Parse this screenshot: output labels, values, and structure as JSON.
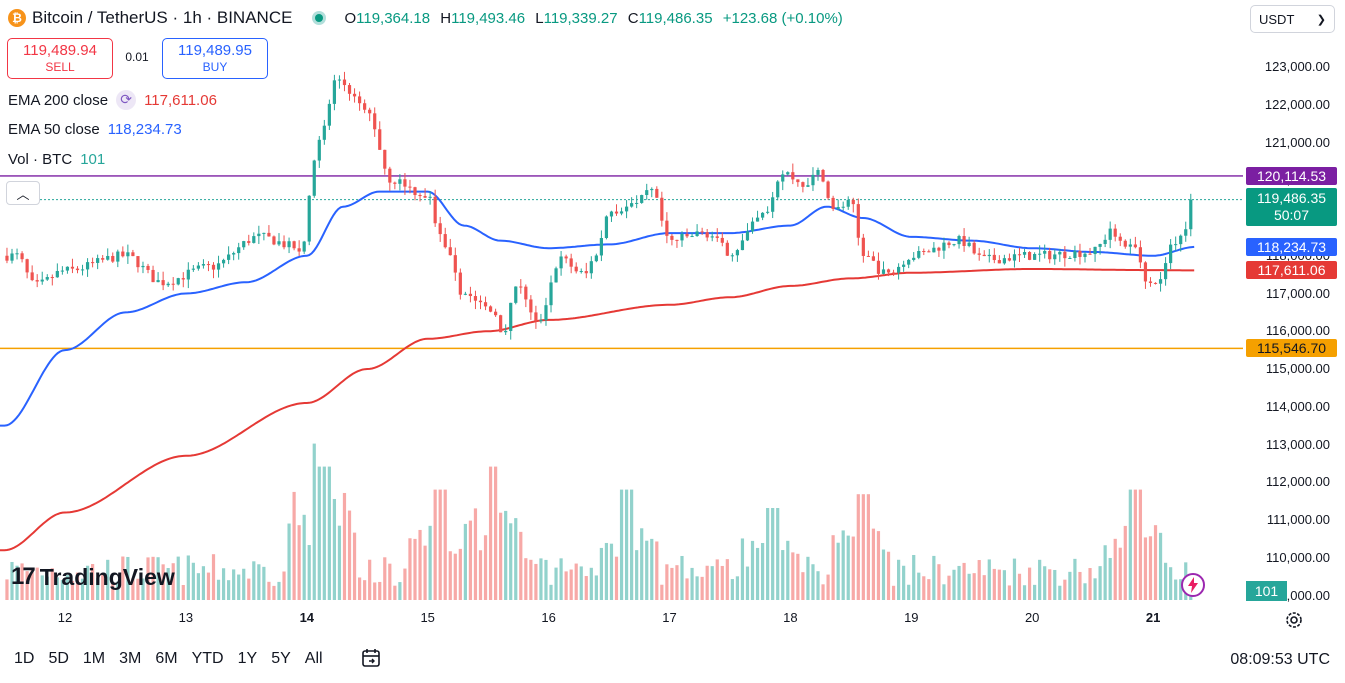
{
  "header": {
    "coin_symbol": "₿",
    "title": "Bitcoin / TetherUS · 1h · BINANCE",
    "ohlc": [
      {
        "key": "O",
        "value": "119,364.18"
      },
      {
        "key": "H",
        "value": "119,493.46"
      },
      {
        "key": "L",
        "value": "119,339.27"
      },
      {
        "key": "C",
        "value": "119,486.35"
      }
    ],
    "change": "+123.68 (+0.10%)"
  },
  "trade": {
    "sell_price": "119,489.94",
    "sell_label": "SELL",
    "spread": "0.01",
    "buy_price": "119,489.95",
    "buy_label": "BUY"
  },
  "indicators": {
    "ema200_label": "EMA 200 close",
    "ema200_value": "117,611.06",
    "ema50_label": "EMA 50 close",
    "ema50_value": "118,234.73",
    "vol_label": "Vol · BTC",
    "vol_value": "101"
  },
  "currency": "USDT",
  "price_axis": [
    "123,000.00",
    "122,000.00",
    "121,000.00",
    "120,000.00",
    "119,000.00",
    "118,000.00",
    "117,000.00",
    "116,000.00",
    "115,000.00",
    "114,000.00",
    "113,000.00",
    "112,000.00",
    "111,000.00",
    "110,000.00",
    "109,000.00"
  ],
  "price_labels": {
    "purple_line": "120,114.53",
    "last_price": "119,486.35",
    "countdown": "50:07",
    "ema50": "118,234.73",
    "ema200": "117,611.06",
    "orange_line": "115,546.70"
  },
  "volume_label": "101",
  "time_axis": [
    {
      "label": "12",
      "bold": false
    },
    {
      "label": "13",
      "bold": false
    },
    {
      "label": "14",
      "bold": true
    },
    {
      "label": "15",
      "bold": false
    },
    {
      "label": "16",
      "bold": false
    },
    {
      "label": "17",
      "bold": false
    },
    {
      "label": "18",
      "bold": false
    },
    {
      "label": "19",
      "bold": false
    },
    {
      "label": "20",
      "bold": false
    },
    {
      "label": "21",
      "bold": true
    }
  ],
  "ranges": [
    "1D",
    "5D",
    "1M",
    "3M",
    "6M",
    "YTD",
    "1Y",
    "5Y",
    "All"
  ],
  "clock": "08:09:53 UTC",
  "logo_text": "TradingView",
  "colors": {
    "up": "#26a69a",
    "down": "#ef5350",
    "ema50": "#2962ff",
    "ema200": "#e53935",
    "purple": "#7b1fa2",
    "orange": "#f5a000"
  },
  "chart_data": {
    "type": "candlestick",
    "symbol": "BTCUSDT",
    "interval": "1h",
    "x_labels": [
      "12",
      "13",
      "14",
      "15",
      "16",
      "17",
      "18",
      "19",
      "20",
      "21"
    ],
    "ylim": [
      108900,
      123500
    ],
    "horizontal_lines": [
      {
        "name": "resistance",
        "value": 120114.53,
        "color": "#7b1fa2"
      },
      {
        "name": "support",
        "value": 115546.7,
        "color": "#f5a000"
      }
    ],
    "close_anchors": [
      {
        "day": 11.6,
        "close": 118000
      },
      {
        "day": 11.75,
        "close": 117200
      },
      {
        "day": 12.0,
        "close": 117600
      },
      {
        "day": 12.5,
        "close": 118000
      },
      {
        "day": 12.8,
        "close": 117300
      },
      {
        "day": 13.2,
        "close": 117700
      },
      {
        "day": 13.6,
        "close": 118500
      },
      {
        "day": 13.95,
        "close": 118200
      },
      {
        "day": 14.1,
        "close": 121000
      },
      {
        "day": 14.25,
        "close": 122700
      },
      {
        "day": 14.5,
        "close": 121800
      },
      {
        "day": 14.7,
        "close": 120000
      },
      {
        "day": 15.0,
        "close": 119600
      },
      {
        "day": 15.1,
        "close": 118500
      },
      {
        "day": 15.3,
        "close": 117000
      },
      {
        "day": 15.55,
        "close": 116500
      },
      {
        "day": 15.62,
        "close": 116000
      },
      {
        "day": 15.75,
        "close": 117300
      },
      {
        "day": 15.9,
        "close": 116200
      },
      {
        "day": 16.1,
        "close": 117900
      },
      {
        "day": 16.3,
        "close": 117500
      },
      {
        "day": 16.4,
        "close": 118100
      },
      {
        "day": 16.5,
        "close": 119200
      },
      {
        "day": 16.7,
        "close": 119300
      },
      {
        "day": 16.85,
        "close": 119700
      },
      {
        "day": 17.0,
        "close": 118400
      },
      {
        "day": 17.3,
        "close": 118600
      },
      {
        "day": 17.5,
        "close": 118100
      },
      {
        "day": 17.8,
        "close": 119100
      },
      {
        "day": 17.95,
        "close": 120200
      },
      {
        "day": 18.1,
        "close": 119900
      },
      {
        "day": 18.25,
        "close": 120200
      },
      {
        "day": 18.35,
        "close": 119200
      },
      {
        "day": 18.5,
        "close": 119400
      },
      {
        "day": 18.6,
        "close": 118000
      },
      {
        "day": 18.8,
        "close": 117500
      },
      {
        "day": 19.0,
        "close": 118000
      },
      {
        "day": 19.4,
        "close": 118400
      },
      {
        "day": 19.6,
        "close": 117900
      },
      {
        "day": 20.0,
        "close": 118000
      },
      {
        "day": 20.5,
        "close": 118100
      },
      {
        "day": 20.65,
        "close": 118600
      },
      {
        "day": 20.85,
        "close": 118200
      },
      {
        "day": 20.95,
        "close": 117400
      },
      {
        "day": 21.05,
        "close": 117300
      },
      {
        "day": 21.15,
        "close": 118300
      },
      {
        "day": 21.25,
        "close": 118600
      },
      {
        "day": 21.33,
        "close": 119486
      }
    ],
    "ema50_anchors": [
      {
        "day": 11.5,
        "value": 113500
      },
      {
        "day": 12.0,
        "value": 115500
      },
      {
        "day": 12.5,
        "value": 116500
      },
      {
        "day": 13.0,
        "value": 117000
      },
      {
        "day": 13.5,
        "value": 117300
      },
      {
        "day": 14.0,
        "value": 118000
      },
      {
        "day": 14.3,
        "value": 119300
      },
      {
        "day": 14.6,
        "value": 119700
      },
      {
        "day": 15.0,
        "value": 119700
      },
      {
        "day": 15.3,
        "value": 118800
      },
      {
        "day": 15.6,
        "value": 118400
      },
      {
        "day": 16.0,
        "value": 118200
      },
      {
        "day": 16.5,
        "value": 118300
      },
      {
        "day": 17.0,
        "value": 118600
      },
      {
        "day": 17.5,
        "value": 118600
      },
      {
        "day": 18.0,
        "value": 118800
      },
      {
        "day": 18.3,
        "value": 119300
      },
      {
        "day": 18.6,
        "value": 119000
      },
      {
        "day": 19.0,
        "value": 118500
      },
      {
        "day": 19.5,
        "value": 118400
      },
      {
        "day": 20.0,
        "value": 118200
      },
      {
        "day": 20.5,
        "value": 118100
      },
      {
        "day": 21.0,
        "value": 118000
      },
      {
        "day": 21.35,
        "value": 118234.73
      }
    ],
    "ema200_anchors": [
      {
        "day": 11.5,
        "value": 110200
      },
      {
        "day": 12.0,
        "value": 111200
      },
      {
        "day": 13.0,
        "value": 112700
      },
      {
        "day": 14.0,
        "value": 114100
      },
      {
        "day": 14.5,
        "value": 115000
      },
      {
        "day": 15.0,
        "value": 115800
      },
      {
        "day": 15.5,
        "value": 116000
      },
      {
        "day": 16.0,
        "value": 116300
      },
      {
        "day": 17.0,
        "value": 116700
      },
      {
        "day": 17.5,
        "value": 116900
      },
      {
        "day": 18.0,
        "value": 117200
      },
      {
        "day": 18.5,
        "value": 117400
      },
      {
        "day": 19.0,
        "value": 117550
      },
      {
        "day": 20.0,
        "value": 117650
      },
      {
        "day": 21.0,
        "value": 117620
      },
      {
        "day": 21.35,
        "value": 117611.06
      }
    ],
    "volume_peaks": [
      {
        "day": 14.1,
        "volume": 3.4
      },
      {
        "day": 14.15,
        "volume": 2.9
      },
      {
        "day": 15.1,
        "volume": 2.4
      },
      {
        "day": 15.55,
        "volume": 2.9
      },
      {
        "day": 16.65,
        "volume": 2.4
      },
      {
        "day": 17.85,
        "volume": 2.0
      },
      {
        "day": 18.6,
        "volume": 2.3
      },
      {
        "day": 20.85,
        "volume": 2.4
      }
    ],
    "last_volume": 101
  }
}
